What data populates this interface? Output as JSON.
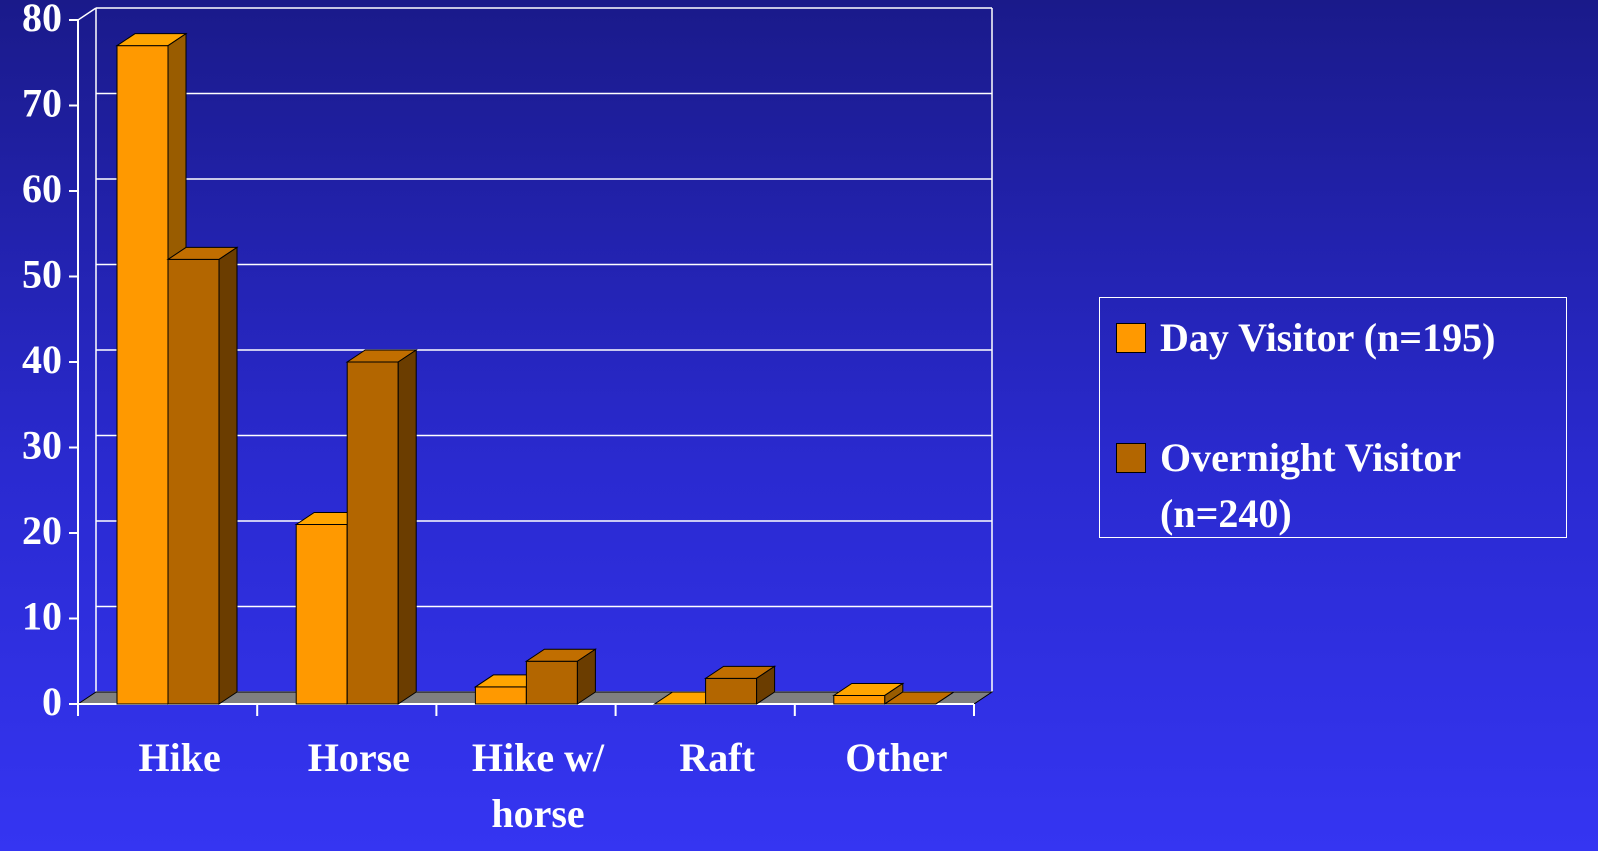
{
  "chart_data": {
    "type": "bar3d",
    "categories": [
      "Hike",
      "Horse",
      "Hike w/ horse",
      "Raft",
      "Other"
    ],
    "series": [
      {
        "name": "Day Visitor (n=195)",
        "color": "#ff9900",
        "values": [
          77,
          21,
          2,
          0,
          1
        ]
      },
      {
        "name": "Overnight Visitor (n=240)",
        "color": "#b36600",
        "values": [
          52,
          40,
          5,
          3,
          0
        ]
      }
    ],
    "ylim": [
      0,
      80
    ],
    "yticks": [
      0,
      10,
      20,
      30,
      40,
      50,
      60,
      70,
      80
    ],
    "grid": true,
    "legend": "right"
  }
}
